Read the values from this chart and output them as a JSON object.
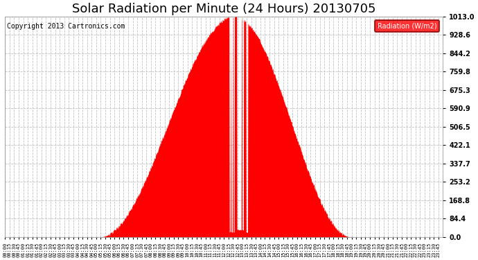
{
  "title": "Solar Radiation per Minute (24 Hours) 20130705",
  "copyright": "Copyright 2013 Cartronics.com",
  "ylabel": "Radiation (W/m2)",
  "yticks": [
    0.0,
    84.4,
    168.8,
    253.2,
    337.7,
    422.1,
    506.5,
    590.9,
    675.3,
    759.8,
    844.2,
    928.6,
    1013.0
  ],
  "ymax": 1013.0,
  "fill_color": "#FF0000",
  "background_color": "#FFFFFF",
  "grid_color": "#C0C0C0",
  "title_fontsize": 13,
  "copyright_fontsize": 7,
  "total_minutes": 1440,
  "sunrise_minute": 312,
  "sunset_minute": 1138,
  "peak_minute": 755,
  "peak_value": 1013.0
}
